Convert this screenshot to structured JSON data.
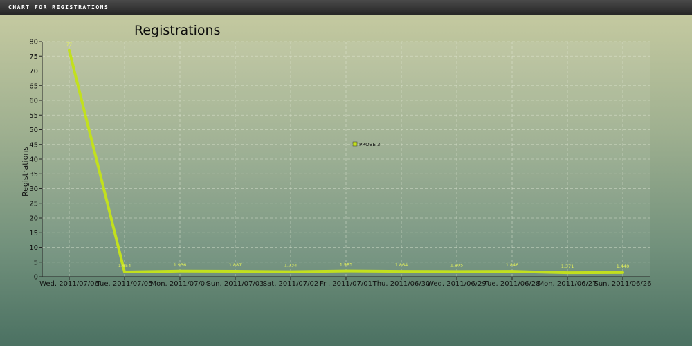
{
  "window": {
    "title": "CHART FOR REGISTRATIONS"
  },
  "colors": {
    "series_line": "#c2e01e",
    "grid": "#e8eddc",
    "axis": "#222222",
    "data_label": "#e6f25a"
  },
  "chart_data": {
    "type": "line",
    "title": "Registrations",
    "xlabel": "",
    "ylabel": "Registrations",
    "ylim": [
      0,
      80
    ],
    "yticks": [
      0,
      5,
      10,
      15,
      20,
      25,
      30,
      35,
      40,
      45,
      50,
      55,
      60,
      65,
      70,
      75,
      80
    ],
    "grid": true,
    "legend": {
      "placement": "center",
      "entries": [
        "PROBE 3"
      ]
    },
    "categories": [
      "Wed. 2011/07/06",
      "Tue. 2011/07/05",
      "Mon. 2011/07/04",
      "Sun. 2011/07/03",
      "Sat. 2011/07/02",
      "Fri. 2011/07/01",
      "Thu. 2011/06/30",
      "Wed. 2011/06/29",
      "Tue. 2011/06/28",
      "Mon. 2011/06/27",
      "Sun. 2011/06/26"
    ],
    "series": [
      {
        "name": "PROBE 3",
        "values": [
          77,
          1.654,
          1.936,
          1.887,
          1.734,
          1.985,
          1.864,
          1.805,
          1.846,
          1.371,
          1.44
        ],
        "labels": [
          "77",
          "1.654",
          "1.936",
          "1.887",
          "1.734",
          "1.985",
          "1.864",
          "1.805",
          "1.846",
          "1.371",
          "1.440"
        ]
      }
    ]
  }
}
